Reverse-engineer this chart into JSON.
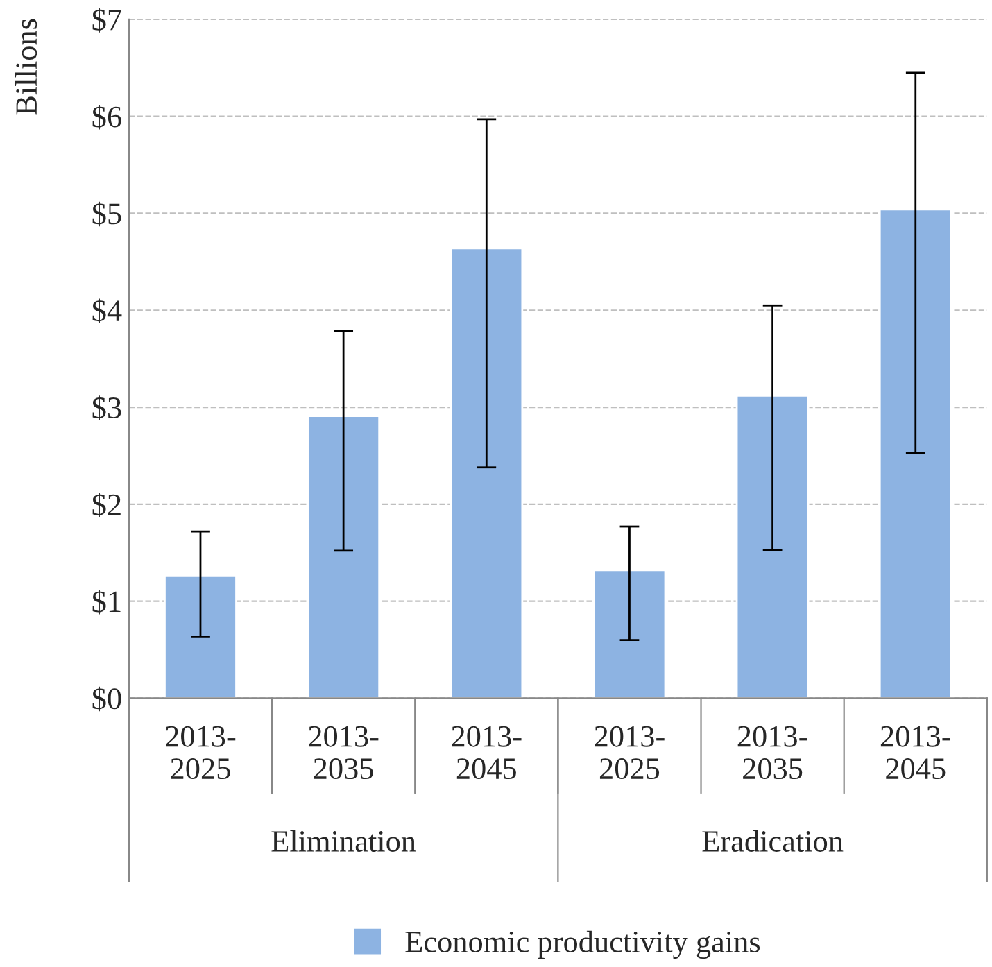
{
  "chart_data": {
    "type": "bar",
    "categories": [
      "2013-\n2025",
      "2013-\n2035",
      "2013-\n2045",
      "2013-\n2025",
      "2013-\n2035",
      "2013-\n2045"
    ],
    "series": [
      {
        "name": "Economic productivity gains",
        "color": "#8db3e2",
        "values": [
          1.26,
          2.91,
          4.64,
          1.32,
          3.12,
          5.04
        ],
        "errors": [
          [
            0.63,
            1.72
          ],
          [
            1.52,
            3.79
          ],
          [
            2.38,
            5.97
          ],
          [
            0.6,
            1.77
          ],
          [
            1.53,
            4.05
          ],
          [
            2.53,
            6.45
          ]
        ]
      }
    ],
    "ylabel": "Billions",
    "annotations": [
      "Elimination",
      "Eradication"
    ],
    "ylim": [
      0,
      7
    ],
    "yticks": [
      {
        "value": 0,
        "label": "$0"
      },
      {
        "value": 1,
        "label": "$1"
      },
      {
        "value": 2,
        "label": "$2"
      },
      {
        "value": 3,
        "label": "$3"
      },
      {
        "value": 4,
        "label": "$4"
      },
      {
        "value": 5,
        "label": "$5"
      },
      {
        "value": 6,
        "label": "$6"
      },
      {
        "value": 7,
        "label": "$7"
      }
    ],
    "grid": "y",
    "legend": "bottom"
  }
}
